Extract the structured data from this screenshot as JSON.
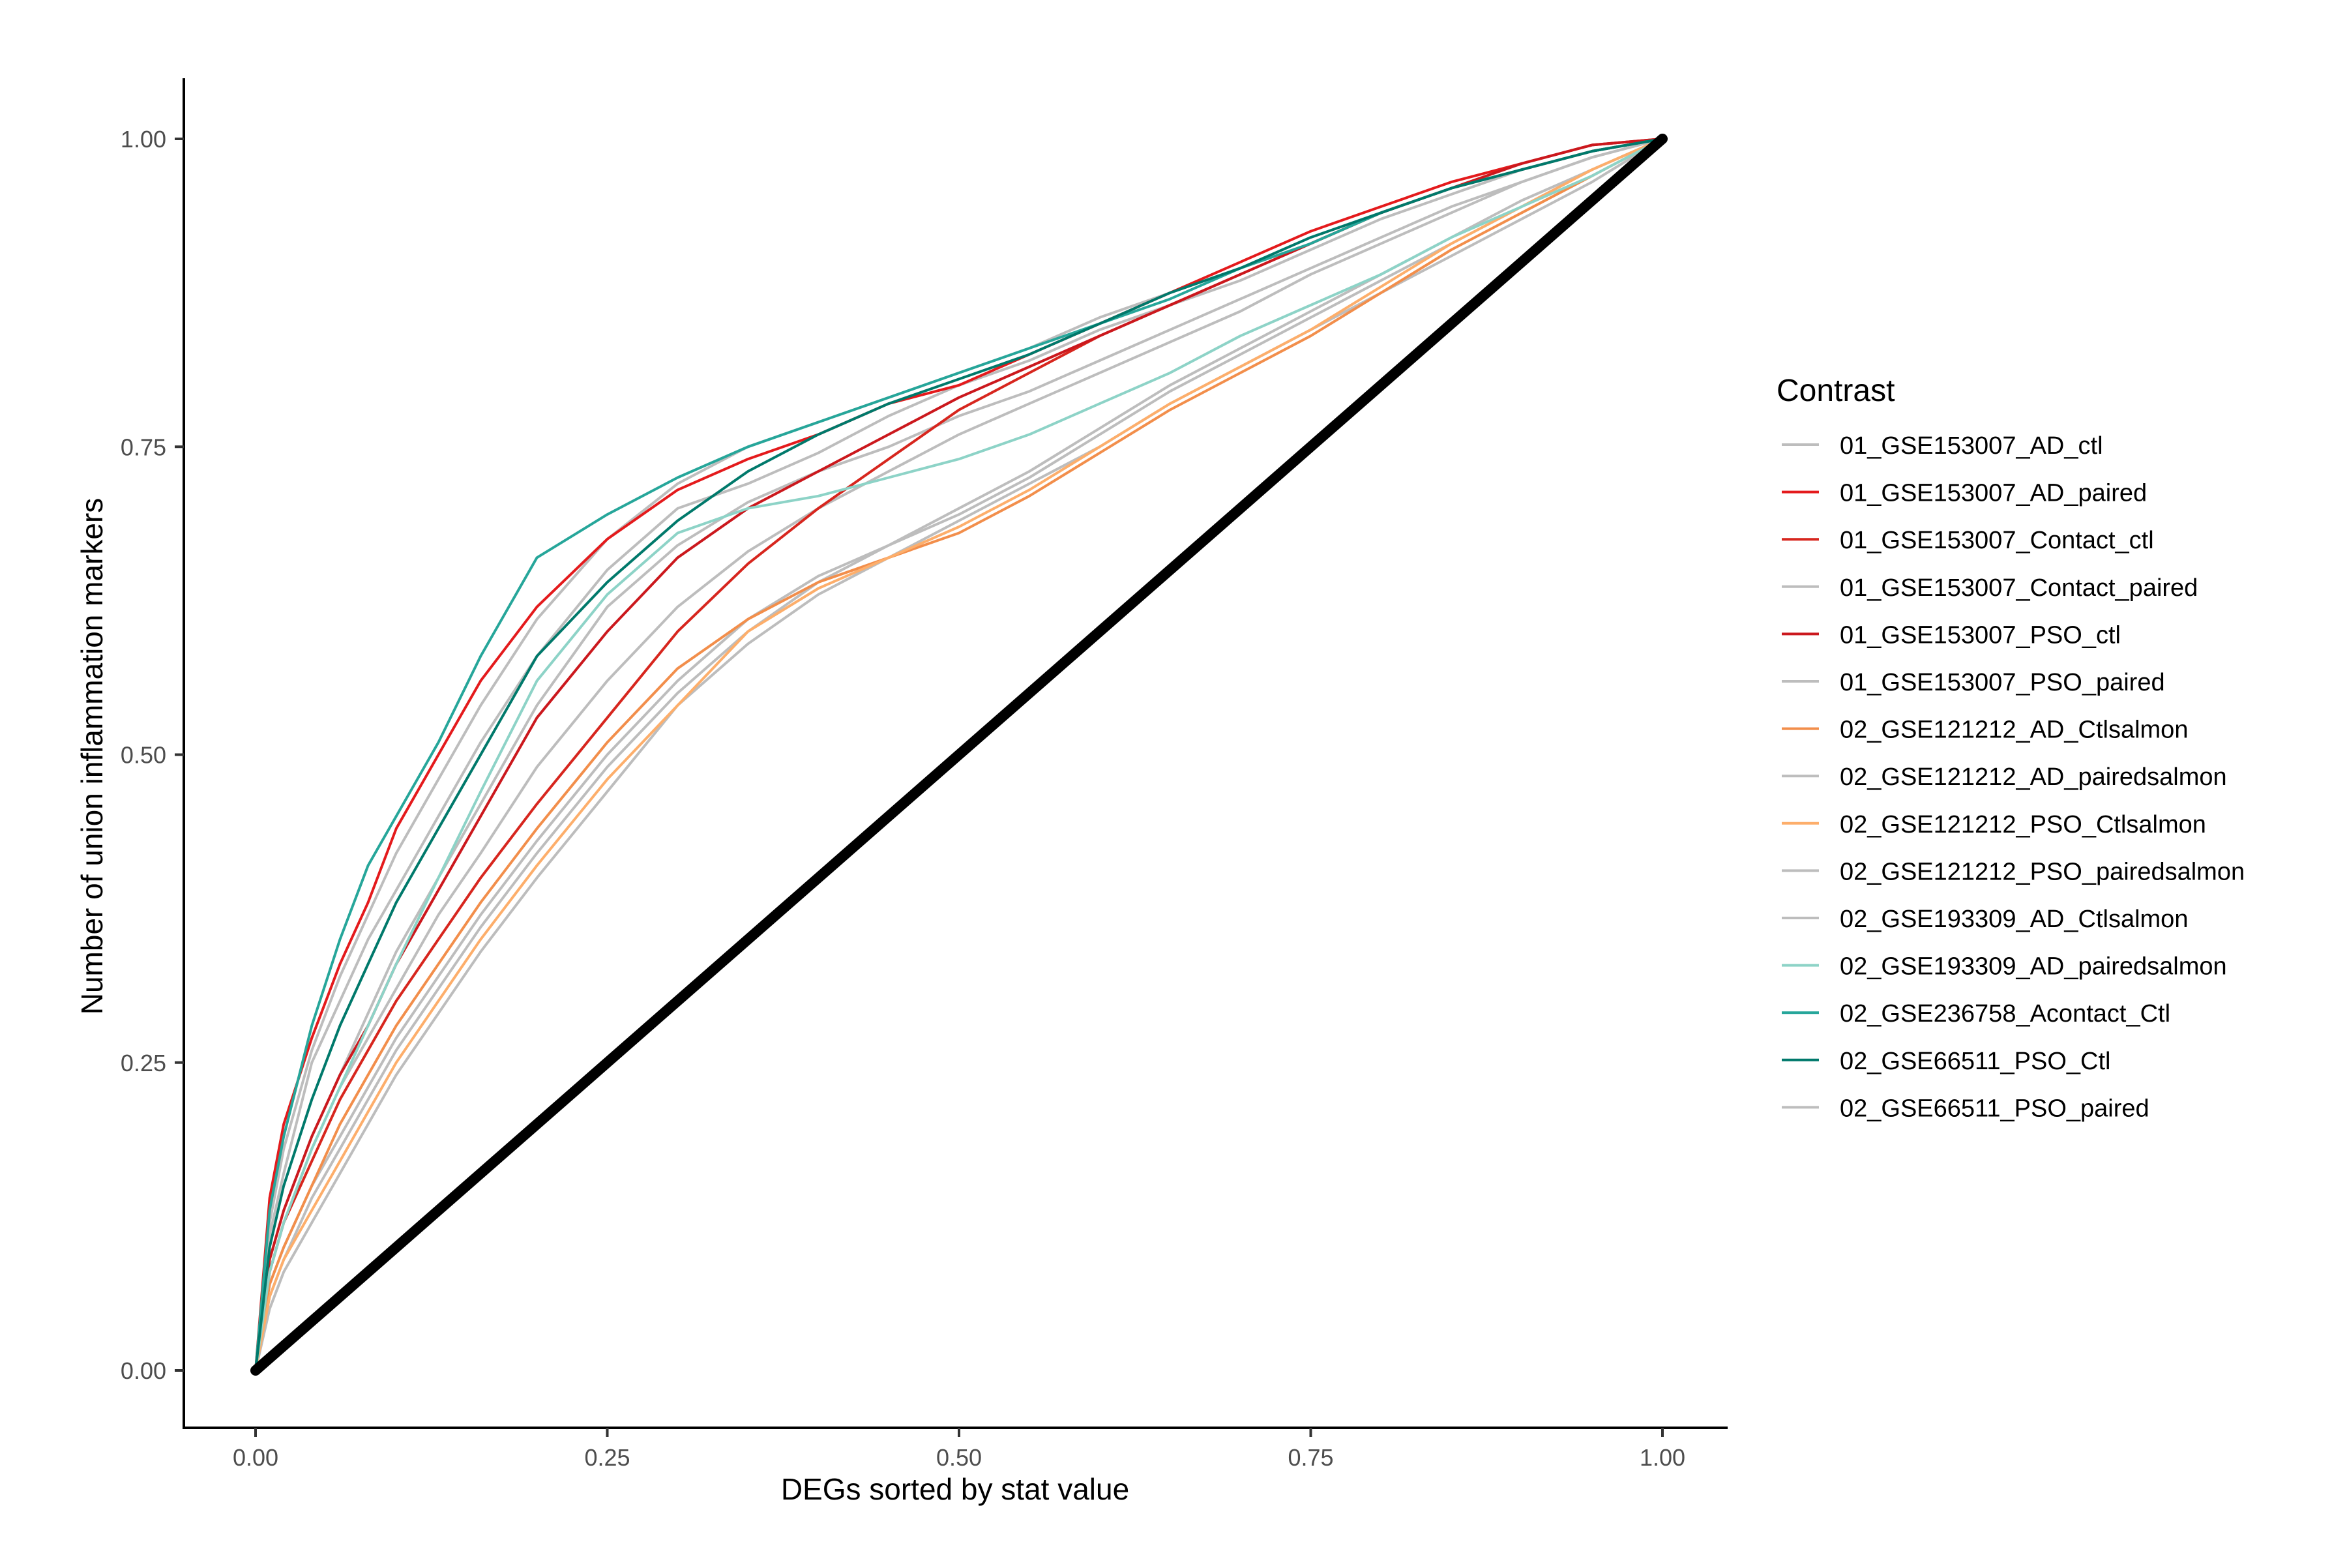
{
  "chart_data": {
    "type": "line",
    "xlabel": "DEGs sorted by stat value",
    "ylabel": "Number of union inflammation markers",
    "xlim": [
      0,
      1
    ],
    "ylim": [
      0,
      1
    ],
    "x_ticks": [
      "0.00",
      "0.25",
      "0.50",
      "0.75",
      "1.00"
    ],
    "y_ticks": [
      "0.00",
      "0.25",
      "0.50",
      "0.75",
      "1.00"
    ],
    "grid": false,
    "legend": {
      "title": "Contrast",
      "placement": "right"
    },
    "reference_line": {
      "x": [
        0,
        1
      ],
      "y": [
        0,
        1
      ],
      "color": "#000000"
    },
    "series": [
      {
        "name": "01_GSE153007_AD_ctl",
        "color": "#BDBDBD",
        "x": [
          0,
          0.01,
          0.02,
          0.04,
          0.06,
          0.08,
          0.1,
          0.13,
          0.16,
          0.2,
          0.25,
          0.3,
          0.35,
          0.4,
          0.45,
          0.5,
          0.55,
          0.6,
          0.65,
          0.7,
          0.75,
          0.8,
          0.85,
          0.9,
          0.95,
          1.0
        ],
        "y": [
          0,
          0.11,
          0.16,
          0.25,
          0.3,
          0.35,
          0.39,
          0.45,
          0.51,
          0.58,
          0.65,
          0.7,
          0.72,
          0.745,
          0.775,
          0.8,
          0.82,
          0.845,
          0.865,
          0.885,
          0.91,
          0.935,
          0.955,
          0.975,
          0.99,
          1.0
        ]
      },
      {
        "name": "01_GSE153007_AD_paired",
        "color": "#E41A1C",
        "x": [
          0,
          0.01,
          0.02,
          0.04,
          0.06,
          0.08,
          0.1,
          0.13,
          0.16,
          0.2,
          0.25,
          0.3,
          0.35,
          0.4,
          0.45,
          0.5,
          0.55,
          0.6,
          0.65,
          0.7,
          0.75,
          0.8,
          0.85,
          0.9,
          0.95,
          1.0
        ],
        "y": [
          0,
          0.14,
          0.2,
          0.27,
          0.33,
          0.38,
          0.44,
          0.5,
          0.56,
          0.62,
          0.675,
          0.715,
          0.74,
          0.76,
          0.785,
          0.8,
          0.825,
          0.85,
          0.875,
          0.9,
          0.925,
          0.945,
          0.965,
          0.98,
          0.995,
          1.0
        ]
      },
      {
        "name": "01_GSE153007_Contact_ctl",
        "color": "#D7261E",
        "x": [
          0,
          0.01,
          0.02,
          0.04,
          0.06,
          0.08,
          0.1,
          0.13,
          0.16,
          0.2,
          0.25,
          0.3,
          0.35,
          0.4,
          0.45,
          0.5,
          0.55,
          0.6,
          0.65,
          0.7,
          0.75,
          0.8,
          0.85,
          0.9,
          0.95,
          1.0
        ],
        "y": [
          0,
          0.08,
          0.12,
          0.17,
          0.22,
          0.26,
          0.3,
          0.35,
          0.4,
          0.46,
          0.53,
          0.6,
          0.655,
          0.7,
          0.74,
          0.78,
          0.81,
          0.84,
          0.865,
          0.89,
          0.915,
          0.94,
          0.96,
          0.975,
          0.99,
          1.0
        ]
      },
      {
        "name": "01_GSE153007_Contact_paired",
        "color": "#BDBDBD",
        "x": [
          0,
          0.01,
          0.02,
          0.04,
          0.06,
          0.08,
          0.1,
          0.13,
          0.16,
          0.2,
          0.25,
          0.3,
          0.35,
          0.4,
          0.45,
          0.5,
          0.55,
          0.6,
          0.65,
          0.7,
          0.75,
          0.8,
          0.85,
          0.9,
          0.95,
          1.0
        ],
        "y": [
          0,
          0.07,
          0.1,
          0.15,
          0.19,
          0.23,
          0.27,
          0.32,
          0.37,
          0.43,
          0.5,
          0.56,
          0.61,
          0.645,
          0.67,
          0.695,
          0.725,
          0.76,
          0.795,
          0.825,
          0.855,
          0.885,
          0.915,
          0.945,
          0.975,
          1.0
        ]
      },
      {
        "name": "01_GSE153007_PSO_ctl",
        "color": "#CB181D",
        "x": [
          0,
          0.01,
          0.02,
          0.04,
          0.06,
          0.08,
          0.1,
          0.13,
          0.16,
          0.2,
          0.25,
          0.3,
          0.35,
          0.4,
          0.45,
          0.5,
          0.55,
          0.6,
          0.65,
          0.7,
          0.75,
          0.8,
          0.85,
          0.9,
          0.95,
          1.0
        ],
        "y": [
          0,
          0.09,
          0.13,
          0.19,
          0.24,
          0.28,
          0.33,
          0.39,
          0.45,
          0.53,
          0.6,
          0.66,
          0.7,
          0.73,
          0.76,
          0.79,
          0.815,
          0.84,
          0.865,
          0.89,
          0.915,
          0.94,
          0.96,
          0.98,
          0.995,
          1.0
        ]
      },
      {
        "name": "01_GSE153007_PSO_paired",
        "color": "#BDBDBD",
        "x": [
          0,
          0.01,
          0.02,
          0.04,
          0.06,
          0.08,
          0.1,
          0.13,
          0.16,
          0.2,
          0.25,
          0.3,
          0.35,
          0.4,
          0.45,
          0.5,
          0.55,
          0.6,
          0.65,
          0.7,
          0.75,
          0.8,
          0.85,
          0.9,
          0.95,
          1.0
        ],
        "y": [
          0,
          0.06,
          0.09,
          0.14,
          0.18,
          0.22,
          0.26,
          0.31,
          0.36,
          0.42,
          0.49,
          0.55,
          0.6,
          0.64,
          0.67,
          0.7,
          0.73,
          0.765,
          0.8,
          0.83,
          0.86,
          0.89,
          0.92,
          0.95,
          0.975,
          1.0
        ]
      },
      {
        "name": "02_GSE121212_AD_Ctlsalmon",
        "color": "#F28E4B",
        "x": [
          0,
          0.01,
          0.02,
          0.04,
          0.06,
          0.08,
          0.1,
          0.13,
          0.16,
          0.2,
          0.25,
          0.3,
          0.35,
          0.4,
          0.45,
          0.5,
          0.55,
          0.6,
          0.65,
          0.7,
          0.75,
          0.8,
          0.85,
          0.9,
          0.95,
          1.0
        ],
        "y": [
          0,
          0.07,
          0.1,
          0.15,
          0.2,
          0.24,
          0.28,
          0.33,
          0.38,
          0.44,
          0.51,
          0.57,
          0.61,
          0.64,
          0.66,
          0.68,
          0.71,
          0.745,
          0.78,
          0.81,
          0.84,
          0.875,
          0.91,
          0.94,
          0.97,
          1.0
        ]
      },
      {
        "name": "02_GSE121212_AD_pairedsalmon",
        "color": "#BDBDBD",
        "x": [
          0,
          0.01,
          0.02,
          0.04,
          0.06,
          0.08,
          0.1,
          0.13,
          0.16,
          0.2,
          0.25,
          0.3,
          0.35,
          0.4,
          0.45,
          0.5,
          0.55,
          0.6,
          0.65,
          0.7,
          0.75,
          0.8,
          0.85,
          0.9,
          0.95,
          1.0
        ],
        "y": [
          0,
          0.05,
          0.08,
          0.12,
          0.16,
          0.2,
          0.24,
          0.29,
          0.34,
          0.4,
          0.47,
          0.54,
          0.59,
          0.63,
          0.66,
          0.69,
          0.72,
          0.75,
          0.785,
          0.815,
          0.845,
          0.875,
          0.905,
          0.935,
          0.965,
          1.0
        ]
      },
      {
        "name": "02_GSE121212_PSO_Ctlsalmon",
        "color": "#FDAE6B",
        "x": [
          0,
          0.01,
          0.02,
          0.04,
          0.06,
          0.08,
          0.1,
          0.13,
          0.16,
          0.2,
          0.25,
          0.3,
          0.35,
          0.4,
          0.45,
          0.5,
          0.55,
          0.6,
          0.65,
          0.7,
          0.75,
          0.8,
          0.85,
          0.9,
          0.95,
          1.0
        ],
        "y": [
          0,
          0.06,
          0.09,
          0.13,
          0.17,
          0.21,
          0.25,
          0.3,
          0.35,
          0.41,
          0.48,
          0.54,
          0.6,
          0.635,
          0.66,
          0.685,
          0.715,
          0.75,
          0.785,
          0.815,
          0.845,
          0.88,
          0.915,
          0.945,
          0.975,
          1.0
        ]
      },
      {
        "name": "02_GSE121212_PSO_pairedsalmon",
        "color": "#BDBDBD",
        "x": [
          0,
          0.01,
          0.02,
          0.04,
          0.06,
          0.08,
          0.1,
          0.13,
          0.16,
          0.2,
          0.25,
          0.3,
          0.35,
          0.4,
          0.45,
          0.5,
          0.55,
          0.6,
          0.65,
          0.7,
          0.75,
          0.8,
          0.85,
          0.9,
          0.95,
          1.0
        ],
        "y": [
          0,
          0.08,
          0.12,
          0.18,
          0.23,
          0.27,
          0.31,
          0.37,
          0.42,
          0.49,
          0.56,
          0.62,
          0.665,
          0.7,
          0.73,
          0.76,
          0.785,
          0.81,
          0.835,
          0.86,
          0.89,
          0.915,
          0.94,
          0.965,
          0.985,
          1.0
        ]
      },
      {
        "name": "02_GSE193309_AD_Ctlsalmon",
        "color": "#BDBDBD",
        "x": [
          0,
          0.01,
          0.02,
          0.04,
          0.06,
          0.08,
          0.1,
          0.13,
          0.16,
          0.2,
          0.25,
          0.3,
          0.35,
          0.4,
          0.45,
          0.5,
          0.55,
          0.6,
          0.65,
          0.7,
          0.75,
          0.8,
          0.85,
          0.9,
          0.95,
          1.0
        ],
        "y": [
          0,
          0.12,
          0.18,
          0.26,
          0.32,
          0.37,
          0.42,
          0.48,
          0.54,
          0.61,
          0.675,
          0.72,
          0.75,
          0.77,
          0.79,
          0.81,
          0.83,
          0.855,
          0.875,
          0.895,
          0.92,
          0.94,
          0.96,
          0.98,
          0.995,
          1.0
        ]
      },
      {
        "name": "02_GSE193309_AD_pairedsalmon",
        "color": "#8DD3C7",
        "x": [
          0,
          0.01,
          0.02,
          0.04,
          0.06,
          0.08,
          0.1,
          0.13,
          0.16,
          0.2,
          0.25,
          0.3,
          0.35,
          0.4,
          0.45,
          0.5,
          0.55,
          0.6,
          0.65,
          0.7,
          0.75,
          0.8,
          0.85,
          0.9,
          0.95,
          1.0
        ],
        "y": [
          0,
          0.08,
          0.12,
          0.18,
          0.23,
          0.28,
          0.33,
          0.4,
          0.47,
          0.56,
          0.63,
          0.68,
          0.7,
          0.71,
          0.725,
          0.74,
          0.76,
          0.785,
          0.81,
          0.84,
          0.865,
          0.89,
          0.92,
          0.945,
          0.97,
          1.0
        ]
      },
      {
        "name": "02_GSE236758_Acontact_Ctl",
        "color": "#26A69A",
        "x": [
          0,
          0.01,
          0.02,
          0.04,
          0.06,
          0.08,
          0.1,
          0.13,
          0.16,
          0.2,
          0.25,
          0.3,
          0.35,
          0.4,
          0.45,
          0.5,
          0.55,
          0.6,
          0.65,
          0.7,
          0.75,
          0.8,
          0.85,
          0.9,
          0.95,
          1.0
        ],
        "y": [
          0,
          0.13,
          0.19,
          0.28,
          0.35,
          0.41,
          0.45,
          0.51,
          0.58,
          0.66,
          0.695,
          0.725,
          0.75,
          0.77,
          0.79,
          0.81,
          0.83,
          0.85,
          0.87,
          0.895,
          0.915,
          0.94,
          0.96,
          0.975,
          0.99,
          1.0
        ]
      },
      {
        "name": "02_GSE66511_PSO_Ctl",
        "color": "#00796B",
        "x": [
          0,
          0.01,
          0.02,
          0.04,
          0.06,
          0.08,
          0.1,
          0.13,
          0.16,
          0.2,
          0.25,
          0.3,
          0.35,
          0.4,
          0.45,
          0.5,
          0.55,
          0.6,
          0.65,
          0.7,
          0.75,
          0.8,
          0.85,
          0.9,
          0.95,
          1.0
        ],
        "y": [
          0,
          0.1,
          0.15,
          0.22,
          0.28,
          0.33,
          0.38,
          0.44,
          0.5,
          0.58,
          0.64,
          0.69,
          0.73,
          0.76,
          0.785,
          0.805,
          0.825,
          0.85,
          0.875,
          0.895,
          0.92,
          0.94,
          0.96,
          0.975,
          0.99,
          1.0
        ]
      },
      {
        "name": "02_GSE66511_PSO_paired",
        "color": "#BDBDBD",
        "x": [
          0,
          0.01,
          0.02,
          0.04,
          0.06,
          0.08,
          0.1,
          0.13,
          0.16,
          0.2,
          0.25,
          0.3,
          0.35,
          0.4,
          0.45,
          0.5,
          0.55,
          0.6,
          0.65,
          0.7,
          0.75,
          0.8,
          0.85,
          0.9,
          0.95,
          1.0
        ],
        "y": [
          0,
          0.09,
          0.13,
          0.19,
          0.24,
          0.29,
          0.34,
          0.4,
          0.46,
          0.54,
          0.62,
          0.67,
          0.705,
          0.73,
          0.75,
          0.775,
          0.795,
          0.82,
          0.845,
          0.87,
          0.895,
          0.92,
          0.945,
          0.965,
          0.985,
          1.0
        ]
      }
    ]
  }
}
